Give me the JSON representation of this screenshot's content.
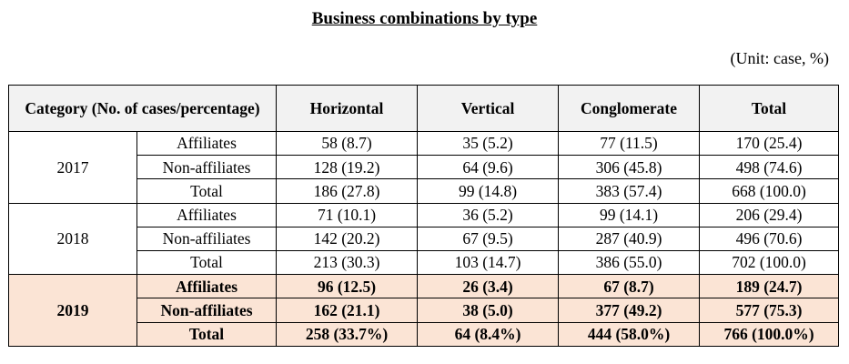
{
  "title": "Business combinations by type",
  "unit": "(Unit: case, %)",
  "header": {
    "category": "Category (No. of cases/percentage)",
    "columns": [
      "Horizontal",
      "Vertical",
      "Conglomerate",
      "Total"
    ]
  },
  "years": [
    {
      "year": "2017",
      "rows": [
        {
          "label": "Affiliates",
          "values": [
            "58 (8.7)",
            "35 (5.2)",
            "77 (11.5)",
            "170 (25.4)"
          ]
        },
        {
          "label": "Non-affiliates",
          "values": [
            "128 (19.2)",
            "64 (9.6)",
            "306 (45.8)",
            "498 (74.6)"
          ]
        },
        {
          "label": "Total",
          "values": [
            "186 (27.8)",
            "99 (14.8)",
            "383 (57.4)",
            "668 (100.0)"
          ]
        }
      ]
    },
    {
      "year": "2018",
      "rows": [
        {
          "label": "Affiliates",
          "values": [
            "71 (10.1)",
            "36 (5.2)",
            "99 (14.1)",
            "206 (29.4)"
          ]
        },
        {
          "label": "Non-affiliates",
          "values": [
            "142 (20.2)",
            "67 (9.5)",
            "287 (40.9)",
            "496 (70.6)"
          ]
        },
        {
          "label": "Total",
          "values": [
            "213 (30.3)",
            "103 (14.7)",
            "386 (55.0)",
            "702 (100.0)"
          ]
        }
      ]
    },
    {
      "year": "2019",
      "highlight": true,
      "highlight_color": "#fbe4d5",
      "rows": [
        {
          "label": "Affiliates",
          "values": [
            "96 (12.5)",
            "26 (3.4)",
            "67 (8.7)",
            "189 (24.7)"
          ]
        },
        {
          "label": "Non-affiliates",
          "values": [
            "162 (21.1)",
            "38 (5.0)",
            "377 (49.2)",
            "577 (75.3)"
          ]
        },
        {
          "label": "Total",
          "values": [
            "258 (33.7%)",
            "64 (8.4%)",
            "444 (58.0%)",
            "766 (100.0%)"
          ]
        }
      ]
    }
  ]
}
